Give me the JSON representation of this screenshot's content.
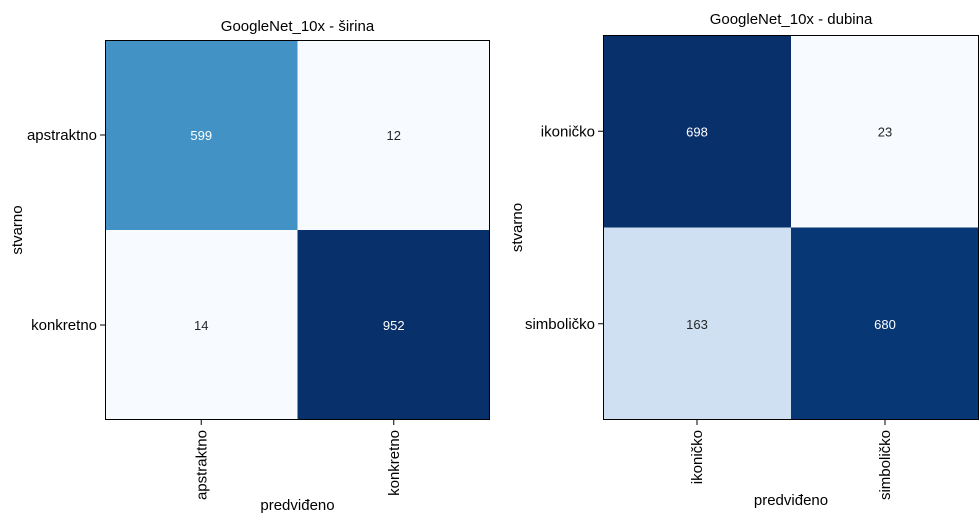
{
  "chart_data": [
    {
      "type": "heatmap",
      "title": "GoogleNet_10x - širina",
      "xlabel": "predviđeno",
      "ylabel": "stvarno",
      "x_categories": [
        "apstraktno",
        "konkretno"
      ],
      "y_categories": [
        "apstraktno",
        "konkretno"
      ],
      "values": [
        [
          599,
          12
        ],
        [
          14,
          952
        ]
      ],
      "colormap": "Blues",
      "grid": false
    },
    {
      "type": "heatmap",
      "title": "GoogleNet_10x - dubina",
      "xlabel": "predviđeno",
      "ylabel": "stvarno",
      "x_categories": [
        "ikoničko",
        "simboličko"
      ],
      "y_categories": [
        "ikoničko",
        "simboličko"
      ],
      "values": [
        [
          698,
          23
        ],
        [
          163,
          680
        ]
      ],
      "colormap": "Blues",
      "grid": false
    }
  ],
  "colors": {
    "low": "#f7fbff",
    "high": "#08306b",
    "dark_text": "#262626",
    "light_text": "#ffffff"
  }
}
